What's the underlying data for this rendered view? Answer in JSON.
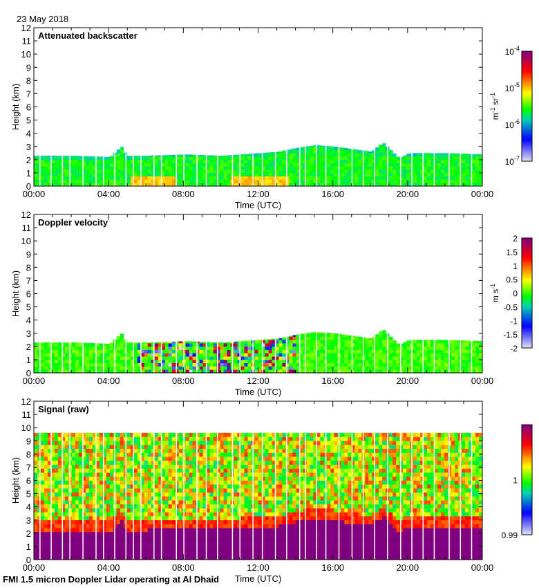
{
  "date": "23 May 2018",
  "footer": "FMI 1.5 micron Doppler Lidar operating at Al Dhaid",
  "chart_data": [
    {
      "type": "heatmap",
      "title": "Attenuated backscatter",
      "xlabel": "Time (UTC)",
      "ylabel": "Height (km)",
      "xlim": [
        0,
        24
      ],
      "ylim": [
        0,
        12
      ],
      "xticks": [
        "00:00",
        "04:00",
        "08:00",
        "12:00",
        "16:00",
        "20:00",
        "00:00"
      ],
      "yticks": [
        "0",
        "1",
        "2",
        "3",
        "4",
        "5",
        "6",
        "7",
        "8",
        "9",
        "10",
        "11",
        "12"
      ],
      "colorbar": {
        "label": "m-1 sr-1",
        "label_main": "m",
        "label_sup1": "-1",
        "label_mid": " sr",
        "label_sup2": "-1",
        "scale": "log",
        "range": [
          1e-07,
          0.0001
        ],
        "ticks": [
          {
            "base": "10",
            "exp": "-4",
            "v": -4
          },
          {
            "base": "10",
            "exp": "-5",
            "v": -5
          },
          {
            "base": "10",
            "exp": "-6",
            "v": -6
          },
          {
            "base": "10",
            "exp": "-7",
            "v": -7
          }
        ]
      },
      "layer_top_km": {
        "hours": [
          0,
          2,
          4,
          4.6,
          4.9,
          6,
          8,
          10,
          12,
          13,
          14,
          15,
          16,
          17,
          18,
          18.6,
          19.4,
          19.6,
          20,
          22,
          24
        ],
        "km": [
          2.3,
          2.3,
          2.2,
          3.0,
          2.3,
          2.3,
          2.4,
          2.3,
          2.5,
          2.6,
          2.9,
          3.1,
          3.0,
          2.8,
          2.6,
          3.3,
          2.2,
          2.2,
          2.5,
          2.5,
          2.4
        ]
      },
      "enhanced_near_surface_hours": [
        [
          5,
          7.5
        ],
        [
          10.5,
          13.5
        ]
      ]
    },
    {
      "type": "heatmap",
      "title": "Doppler velocity",
      "xlabel": "Time (UTC)",
      "ylabel": "Height (km)",
      "xlim": [
        0,
        24
      ],
      "ylim": [
        0,
        12
      ],
      "xticks": [
        "00:00",
        "04:00",
        "08:00",
        "12:00",
        "16:00",
        "20:00",
        "00:00"
      ],
      "yticks": [
        "0",
        "1",
        "2",
        "3",
        "4",
        "5",
        "6",
        "7",
        "8",
        "9",
        "10",
        "11",
        "12"
      ],
      "colorbar": {
        "label_main": "m s",
        "label_sup1": "-1",
        "scale": "linear",
        "range": [
          -2,
          2
        ],
        "ticks": [
          {
            "base": "2",
            "v": 2
          },
          {
            "base": "1.5",
            "v": 1.5
          },
          {
            "base": "1",
            "v": 1
          },
          {
            "base": "0.5",
            "v": 0.5
          },
          {
            "base": "0",
            "v": 0
          },
          {
            "base": "-0.5",
            "v": -0.5
          },
          {
            "base": "-1",
            "v": -1
          },
          {
            "base": "-1.5",
            "v": -1.5
          },
          {
            "base": "-2",
            "v": -2
          }
        ]
      },
      "convective_hours": [
        5.5,
        14
      ]
    },
    {
      "type": "heatmap",
      "title": "Signal (raw)",
      "xlabel": "Time (UTC)",
      "ylabel": "Height (km)",
      "xlim": [
        0,
        24
      ],
      "ylim": [
        0,
        12
      ],
      "xticks": [
        "00:00",
        "04:00",
        "08:00",
        "12:00",
        "16:00",
        "20:00",
        "00:00"
      ],
      "yticks": [
        "0",
        "1",
        "2",
        "3",
        "4",
        "5",
        "6",
        "7",
        "8",
        "9",
        "10",
        "11",
        "12"
      ],
      "colorbar": {
        "scale": "linear",
        "range": [
          0.99,
          1.01
        ],
        "ticks": [
          {
            "base": "1",
            "v": 1
          },
          {
            "base": "0.99",
            "v": 0.99
          }
        ]
      },
      "max_range_km": 9.6
    }
  ],
  "data_gaps_hours": [
    0.3,
    0.9,
    1.5,
    1.9,
    2.6,
    3.3,
    3.7,
    4.3,
    4.9,
    5.3,
    5.7,
    6.4,
    6.8,
    7.6,
    8.0,
    8.7,
    9.2,
    9.8,
    10.6,
    11.0,
    11.7,
    12.2,
    12.9,
    13.5,
    14.2,
    14.5,
    15.1,
    15.6,
    16.3,
    17.0,
    17.6,
    18.2,
    18.9,
    19.6,
    20.2,
    20.8,
    21.4,
    22.2,
    22.8,
    23.4
  ],
  "colors": {
    "cmap": [
      "#e4e4f2",
      "#0000ff",
      "#00d2b4",
      "#00ff00",
      "#ffff00",
      "#ff0000",
      "#800080"
    ]
  }
}
